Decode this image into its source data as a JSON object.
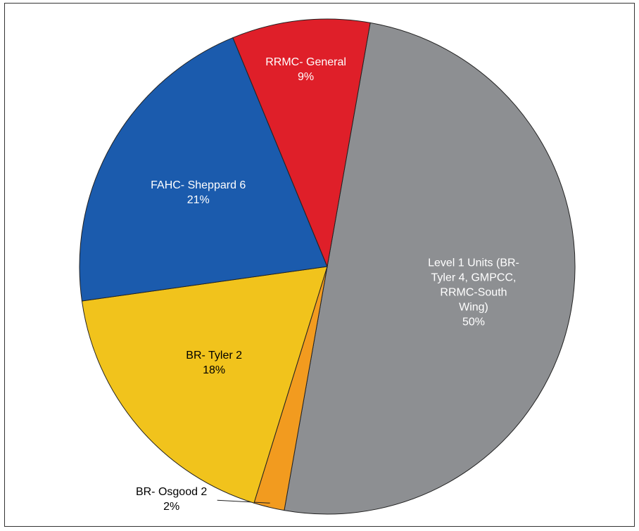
{
  "chart_data": {
    "type": "pie",
    "categories": [
      "Level 1 Units (BR-Tyler 4, GMPCC, RRMC-South Wing)",
      "BR- Osgood 2",
      "BR- Tyler 2",
      "FAHC- Sheppard 6",
      "RRMC- General"
    ],
    "values": [
      50,
      2,
      18,
      21,
      9
    ],
    "value_labels": [
      "50%",
      "2%",
      "18%",
      "21%",
      "9%"
    ],
    "colors": [
      "#8d8f92",
      "#f29b1f",
      "#f1c31c",
      "#1b5bad",
      "#df1f29"
    ]
  }
}
